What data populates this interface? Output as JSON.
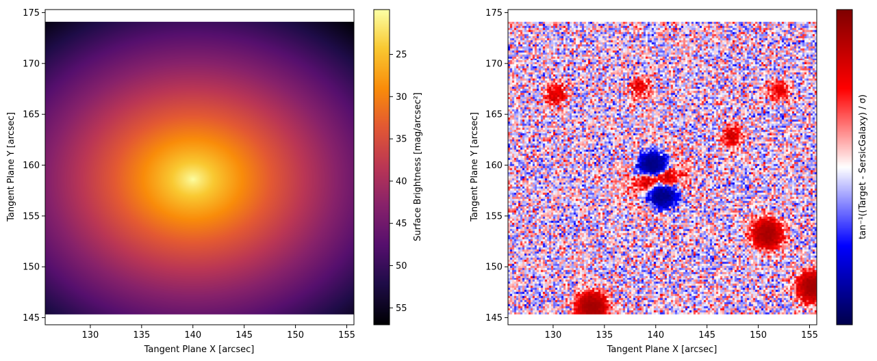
{
  "chart_data": [
    {
      "type": "heatmap",
      "xlabel": "Tangent Plane X [arcsec]",
      "ylabel": "Tangent Plane Y [arcsec]",
      "xlim": [
        125.6,
        155.7
      ],
      "ylim": [
        144.3,
        175.3
      ],
      "extent": {
        "x": [
          125.6,
          155.7
        ],
        "y": [
          145.3,
          174.1
        ]
      },
      "xticks": [
        130,
        135,
        140,
        145,
        150,
        155
      ],
      "yticks": [
        145,
        150,
        155,
        160,
        165,
        170,
        175
      ],
      "colormap": "inferno",
      "model": {
        "type": "sersic",
        "center": [
          140.0,
          158.6
        ],
        "axis_ratio": 0.82,
        "mag_range": [
          19.7,
          57.0
        ]
      },
      "colorbar": {
        "label": "Surface Brightness [mag/arcsec²]",
        "range": [
          19.7,
          57.0
        ],
        "inverted": true,
        "ticks": [
          25,
          30,
          35,
          40,
          45,
          50,
          55
        ]
      }
    },
    {
      "type": "heatmap",
      "xlabel": "Tangent Plane X [arcsec]",
      "ylabel": "Tangent Plane Y [arcsec]",
      "xlim": [
        125.6,
        155.7
      ],
      "ylim": [
        144.3,
        175.3
      ],
      "extent": {
        "x": [
          125.6,
          155.7
        ],
        "y": [
          145.3,
          174.1
        ]
      },
      "xticks": [
        130,
        135,
        140,
        145,
        150,
        155
      ],
      "yticks": [
        145,
        150,
        155,
        160,
        165,
        170,
        175
      ],
      "colormap": "seismic",
      "features": [
        {
          "kind": "negative",
          "x": 139.7,
          "y": 159.9,
          "amplitude": 1.0
        },
        {
          "kind": "negative",
          "x": 140.7,
          "y": 157.1,
          "amplitude": 0.9
        },
        {
          "kind": "positive",
          "x": 139.3,
          "y": 158.5,
          "amplitude": 0.7
        },
        {
          "kind": "positive",
          "x": 141.0,
          "y": 158.7,
          "amplitude": 0.7
        },
        {
          "kind": "positive",
          "x": 150.9,
          "y": 153.2,
          "amplitude": 0.9
        },
        {
          "kind": "positive",
          "x": 133.8,
          "y": 146.0,
          "amplitude": 1.0
        },
        {
          "kind": "positive",
          "x": 155.3,
          "y": 148.0,
          "amplitude": 1.0
        },
        {
          "kind": "positive",
          "x": 147.4,
          "y": 162.8,
          "amplitude": 0.4
        },
        {
          "kind": "positive",
          "x": 130.3,
          "y": 166.9,
          "amplitude": 0.4
        },
        {
          "kind": "positive",
          "x": 138.5,
          "y": 167.7,
          "amplitude": 0.35
        },
        {
          "kind": "positive",
          "x": 152.0,
          "y": 167.2,
          "amplitude": 0.3
        }
      ],
      "colorbar": {
        "label": "tan⁻¹((Target - SersicGalaxy) / σ)",
        "range": [
          -1.5708,
          1.5708
        ],
        "ticks": []
      }
    }
  ]
}
